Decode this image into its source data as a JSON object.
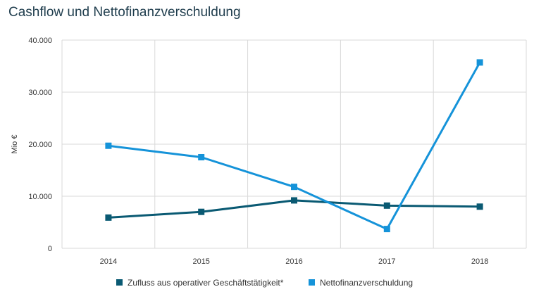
{
  "chart_data": {
    "type": "line",
    "title": "Cashflow und Nettofinanzverschuldung",
    "xlabel": "",
    "ylabel": "Mio €",
    "categories": [
      "2014",
      "2015",
      "2016",
      "2017",
      "2018"
    ],
    "ylim": [
      0,
      40000
    ],
    "yticks": [
      {
        "value": 0,
        "label": "0"
      },
      {
        "value": 10000,
        "label": "10.000"
      },
      {
        "value": 20000,
        "label": "20.000"
      },
      {
        "value": 30000,
        "label": "30.000"
      },
      {
        "value": 40000,
        "label": "40.000"
      }
    ],
    "grid": true,
    "legend_position": "bottom",
    "series": [
      {
        "name": "Zufluss aus operativer Geschäftstätigkeit*",
        "color": "#0a5a73",
        "values": [
          5900,
          7000,
          9200,
          8200,
          8000
        ]
      },
      {
        "name": "Nettofinanzverschuldung",
        "color": "#1593d9",
        "values": [
          19700,
          17500,
          11800,
          3700,
          35700
        ]
      }
    ]
  }
}
